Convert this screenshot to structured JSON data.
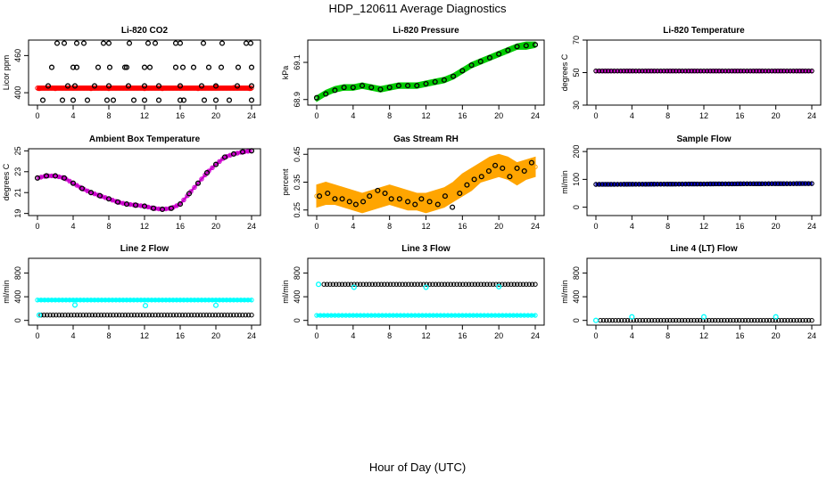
{
  "figure": {
    "title": "HDP_120611  Average Diagnostics",
    "xlabel": "Hour of Day (UTC)"
  },
  "chart_data": [
    {
      "type": "scatter",
      "title": "Li-820 CO2",
      "ylabel": "Licor ppm",
      "xlim": [
        0,
        24
      ],
      "xticks": [
        0,
        4,
        8,
        12,
        16,
        20,
        24
      ],
      "ylim": [
        380,
        485
      ],
      "yticks": [
        400,
        460
      ],
      "yticks_shown": [
        400,
        460
      ],
      "series": [
        {
          "name": "band",
          "color": "#ff0000",
          "kind": "band",
          "x": [
            0,
            24
          ],
          "low": [
            404,
            404
          ],
          "high": [
            411,
            411
          ]
        },
        {
          "name": "mean",
          "color": "#ff0000",
          "kind": "points",
          "x": [
            0.2,
            2,
            4,
            6,
            8,
            10,
            12,
            14,
            16,
            18,
            20,
            22,
            23.8
          ],
          "y": [
            407,
            407,
            408,
            407,
            407,
            408,
            407,
            407,
            408,
            407,
            409,
            408,
            407
          ]
        },
        {
          "name": "max",
          "color": "#000000",
          "kind": "points",
          "x": [
            2.2,
            3,
            4.4,
            5.2,
            7.4,
            8,
            10.3,
            12.4,
            13.2,
            15.5,
            16,
            18.6,
            20.7,
            23.4,
            23.9
          ],
          "y": [
            480,
            480,
            480,
            480,
            480,
            480,
            480,
            480,
            480,
            480,
            480,
            480,
            480,
            480,
            480
          ]
        },
        {
          "name": "upper",
          "color": "#000000",
          "kind": "points",
          "x": [
            1.6,
            4,
            4.4,
            6.8,
            8.1,
            9.8,
            10,
            12,
            12.6,
            15.5,
            16.3,
            17.5,
            19.2,
            20.6,
            22.5,
            24
          ],
          "y": [
            441,
            441,
            441,
            441,
            441,
            441,
            441,
            441,
            441,
            441,
            441,
            441,
            441,
            441,
            441,
            441
          ]
        },
        {
          "name": "lower",
          "color": "#000000",
          "kind": "points",
          "x": [
            0.6,
            2.8,
            4,
            5.6,
            7.8,
            8.5,
            10.8,
            12,
            13.6,
            16,
            16.4,
            18.7,
            20,
            21.5,
            24
          ],
          "y": [
            388,
            388,
            388,
            388,
            388,
            388,
            388,
            388,
            388,
            388,
            388,
            388,
            388,
            388,
            388
          ]
        },
        {
          "name": "mid",
          "color": "#000000",
          "kind": "points",
          "x": [
            1.2,
            3.4,
            4.2,
            6.4,
            8,
            10.2,
            12,
            13.6,
            16,
            18.4,
            20,
            22.4,
            24
          ],
          "y": [
            411,
            411,
            411,
            411,
            411,
            411,
            411,
            411,
            411,
            411,
            411,
            411,
            411
          ]
        }
      ]
    },
    {
      "type": "scatter",
      "title": "Li-820 Pressure",
      "ylabel": "kPa",
      "xlim": [
        0,
        24
      ],
      "xticks": [
        0,
        4,
        8,
        12,
        16,
        20,
        24
      ],
      "ylim": [
        68.87,
        69.22
      ],
      "yticks": [
        68.9,
        69.1
      ],
      "yticks_shown": [
        68.9,
        69.1
      ],
      "series": [
        {
          "name": "band",
          "color": "#00cc00",
          "kind": "band",
          "x": [
            0,
            1,
            2,
            3,
            4,
            5,
            6,
            7,
            8,
            9,
            10,
            11,
            12,
            13,
            14,
            15,
            16,
            17,
            18,
            19,
            20,
            21,
            22,
            23,
            24
          ],
          "low": [
            68.89,
            68.92,
            68.94,
            68.95,
            68.95,
            68.96,
            68.95,
            68.94,
            68.95,
            68.96,
            68.96,
            68.96,
            68.97,
            68.98,
            68.99,
            69.01,
            69.04,
            69.07,
            69.09,
            69.11,
            69.13,
            69.15,
            69.17,
            69.17,
            69.18
          ],
          "high": [
            68.92,
            68.95,
            68.97,
            68.98,
            68.98,
            68.99,
            68.98,
            68.97,
            68.98,
            68.99,
            68.99,
            68.99,
            69.0,
            69.01,
            69.02,
            69.04,
            69.07,
            69.1,
            69.12,
            69.14,
            69.16,
            69.18,
            69.2,
            69.21,
            69.21
          ]
        },
        {
          "name": "mean",
          "color": "#000000",
          "kind": "points",
          "x": [
            0,
            1,
            2,
            3,
            4,
            5,
            6,
            7,
            8,
            9,
            10,
            11,
            12,
            13,
            14,
            15,
            16,
            17,
            18,
            19,
            20,
            21,
            22,
            23,
            24
          ],
          "y": [
            68.91,
            68.93,
            68.95,
            68.965,
            68.965,
            68.975,
            68.965,
            68.955,
            68.965,
            68.975,
            68.975,
            68.975,
            68.985,
            68.995,
            69.005,
            69.025,
            69.055,
            69.085,
            69.105,
            69.125,
            69.145,
            69.165,
            69.185,
            69.19,
            69.195
          ]
        }
      ]
    },
    {
      "type": "scatter",
      "title": "Li-820 Temperature",
      "ylabel": "degrees C",
      "xlim": [
        0,
        24
      ],
      "xticks": [
        0,
        4,
        8,
        12,
        16,
        20,
        24
      ],
      "ylim": [
        30,
        70
      ],
      "yticks": [
        30,
        50,
        70
      ],
      "yticks_shown": [
        30,
        50,
        70
      ],
      "series": [
        {
          "name": "band",
          "color": "#cc00cc",
          "kind": "band",
          "x": [
            0,
            24
          ],
          "low": [
            50.3,
            50.3
          ],
          "high": [
            51.7,
            51.7
          ]
        },
        {
          "name": "mean",
          "color": "#000000",
          "kind": "line",
          "x": [
            0,
            24
          ],
          "y": [
            51,
            51
          ]
        }
      ]
    },
    {
      "type": "scatter",
      "title": "Ambient Box Temperature",
      "ylabel": "degrees C",
      "xlim": [
        0,
        24
      ],
      "xticks": [
        0,
        4,
        8,
        12,
        16,
        20,
        24
      ],
      "ylim": [
        18.8,
        25.2
      ],
      "yticks": [
        19,
        21,
        23,
        25
      ],
      "yticks_shown": [
        19,
        21,
        23,
        25
      ],
      "series": [
        {
          "name": "band",
          "color": "#cc00cc",
          "kind": "band",
          "x": [
            0,
            1,
            2,
            3,
            4,
            5,
            6,
            7,
            8,
            9,
            10,
            11,
            12,
            13,
            14,
            15,
            16,
            17,
            18,
            19,
            20,
            21,
            22,
            23,
            24
          ],
          "low": [
            22.3,
            22.5,
            22.5,
            22.3,
            21.8,
            21.3,
            20.9,
            20.6,
            20.3,
            20.0,
            19.8,
            19.7,
            19.6,
            19.4,
            19.3,
            19.4,
            19.8,
            20.8,
            21.8,
            22.8,
            23.6,
            24.3,
            24.6,
            24.8,
            24.9
          ],
          "high": [
            22.5,
            22.7,
            22.7,
            22.5,
            22.0,
            21.5,
            21.1,
            20.8,
            20.5,
            20.2,
            20.0,
            19.9,
            19.8,
            19.6,
            19.5,
            19.6,
            20.0,
            21.0,
            22.0,
            23.0,
            23.8,
            24.5,
            24.8,
            25.0,
            25.1
          ]
        },
        {
          "name": "mean",
          "color": "#000000",
          "kind": "points",
          "x": [
            0,
            1,
            2,
            3,
            4,
            5,
            6,
            7,
            8,
            9,
            10,
            11,
            12,
            13,
            14,
            15,
            16,
            17,
            18,
            19,
            20,
            21,
            22,
            23,
            24
          ],
          "y": [
            22.4,
            22.6,
            22.6,
            22.4,
            21.9,
            21.4,
            21.0,
            20.7,
            20.4,
            20.1,
            19.9,
            19.8,
            19.7,
            19.5,
            19.4,
            19.5,
            19.9,
            20.9,
            21.9,
            22.9,
            23.7,
            24.4,
            24.7,
            24.9,
            25.0
          ]
        }
      ]
    },
    {
      "type": "scatter",
      "title": "Gas Stream RH",
      "ylabel": "percent",
      "xlim": [
        0,
        24
      ],
      "xticks": [
        0,
        4,
        8,
        12,
        16,
        20,
        24
      ],
      "ylim": [
        0.23,
        0.47
      ],
      "yticks": [
        0.25,
        0.35,
        0.45
      ],
      "yticks_shown": [
        0.25,
        0.35,
        0.45
      ],
      "series": [
        {
          "name": "band",
          "color": "#ffa500",
          "kind": "band",
          "x": [
            0,
            1,
            2,
            3,
            4,
            5,
            6,
            7,
            8,
            9,
            10,
            11,
            12,
            13,
            14,
            15,
            16,
            17,
            18,
            19,
            20,
            21,
            22,
            23,
            24
          ],
          "low": [
            0.26,
            0.27,
            0.27,
            0.26,
            0.25,
            0.24,
            0.25,
            0.26,
            0.27,
            0.26,
            0.25,
            0.25,
            0.24,
            0.25,
            0.26,
            0.28,
            0.3,
            0.32,
            0.35,
            0.36,
            0.37,
            0.36,
            0.34,
            0.36,
            0.37
          ],
          "high": [
            0.34,
            0.35,
            0.34,
            0.33,
            0.32,
            0.31,
            0.32,
            0.33,
            0.34,
            0.33,
            0.32,
            0.31,
            0.31,
            0.32,
            0.33,
            0.35,
            0.38,
            0.4,
            0.42,
            0.44,
            0.45,
            0.44,
            0.42,
            0.43,
            0.44
          ]
        },
        {
          "name": "mean",
          "color": "#000000",
          "kind": "points",
          "x": [
            0.3,
            1.2,
            2,
            2.8,
            3.6,
            4.3,
            5.1,
            5.8,
            6.7,
            7.5,
            8.2,
            9.1,
            10,
            10.8,
            11.5,
            12.4,
            13.3,
            14.1,
            14.9,
            15.7,
            16.5,
            17.3,
            18.1,
            18.9,
            19.6,
            20.4,
            21.2,
            22,
            22.8,
            23.6
          ],
          "y": [
            0.3,
            0.31,
            0.29,
            0.29,
            0.28,
            0.27,
            0.28,
            0.3,
            0.32,
            0.31,
            0.29,
            0.29,
            0.28,
            0.27,
            0.29,
            0.28,
            0.27,
            0.3,
            0.26,
            0.31,
            0.34,
            0.36,
            0.37,
            0.39,
            0.41,
            0.4,
            0.37,
            0.4,
            0.39,
            0.42
          ]
        }
      ]
    },
    {
      "type": "scatter",
      "title": "Sample Flow",
      "ylabel": "ml/min",
      "xlim": [
        0,
        24
      ],
      "xticks": [
        0,
        4,
        8,
        12,
        16,
        20,
        24
      ],
      "ylim": [
        -30,
        210
      ],
      "yticks": [
        0,
        100,
        200
      ],
      "yticks_shown": [
        0,
        100,
        200
      ],
      "series": [
        {
          "name": "band",
          "color": "#0000cc",
          "kind": "band",
          "x": [
            0,
            24
          ],
          "low": [
            77,
            80
          ],
          "high": [
            87,
            90
          ]
        },
        {
          "name": "mean",
          "color": "#000000",
          "kind": "line",
          "x": [
            0,
            24
          ],
          "y": [
            82,
            85
          ]
        }
      ]
    },
    {
      "type": "scatter",
      "title": "Line 2 Flow",
      "ylabel": "ml/min",
      "xlim": [
        0,
        24
      ],
      "xticks": [
        0,
        4,
        8,
        12,
        16,
        20,
        24
      ],
      "ylim": [
        -80,
        1050
      ],
      "yticks": [
        0,
        400,
        800
      ],
      "yticks_shown": [
        0,
        400,
        800
      ],
      "series": [
        {
          "name": "line-a-band",
          "color": "#00ffff",
          "kind": "band",
          "x": [
            0,
            24
          ],
          "low": [
            320,
            320
          ],
          "high": [
            370,
            370
          ]
        },
        {
          "name": "line-a-dips",
          "color": "#00ffff",
          "kind": "points",
          "x": [
            4.2,
            12.1,
            20
          ],
          "y": [
            260,
            250,
            255
          ]
        },
        {
          "name": "line-b-mean",
          "color": "#000000",
          "kind": "points",
          "x": [
            0.4,
            24
          ],
          "y": [
            90,
            90
          ],
          "dense": true
        },
        {
          "name": "line-b-cyan",
          "color": "#00ffff",
          "kind": "points",
          "x": [
            0.2
          ],
          "y": [
            90
          ]
        }
      ]
    },
    {
      "type": "scatter",
      "title": "Line 3 Flow",
      "ylabel": "ml/min",
      "xlim": [
        0,
        24
      ],
      "xticks": [
        0,
        4,
        8,
        12,
        16,
        20,
        24
      ],
      "ylim": [
        -80,
        1050
      ],
      "yticks": [
        0,
        400,
        800
      ],
      "yticks_shown": [
        0,
        400,
        800
      ],
      "series": [
        {
          "name": "upper-mean",
          "color": "#000000",
          "kind": "points",
          "x": [
            0.8,
            24
          ],
          "y": [
            610,
            610
          ],
          "dense": true
        },
        {
          "name": "upper-cyan",
          "color": "#00ffff",
          "kind": "points",
          "x": [
            0.2,
            4.1,
            12,
            20
          ],
          "y": [
            610,
            560,
            560,
            570
          ]
        },
        {
          "name": "lower-band",
          "color": "#00ffff",
          "kind": "band",
          "x": [
            0,
            24
          ],
          "low": [
            70,
            70
          ],
          "high": [
            100,
            100
          ]
        }
      ]
    },
    {
      "type": "scatter",
      "title": "Line 4 (LT) Flow",
      "ylabel": "ml/min",
      "xlim": [
        0,
        24
      ],
      "xticks": [
        0,
        4,
        8,
        12,
        16,
        20,
        24
      ],
      "ylim": [
        -80,
        1050
      ],
      "yticks": [
        0,
        400,
        800
      ],
      "yticks_shown": [
        0,
        400,
        800
      ],
      "series": [
        {
          "name": "mean",
          "color": "#000000",
          "kind": "points",
          "x": [
            0.5,
            24
          ],
          "y": [
            0,
            0
          ],
          "dense": true
        },
        {
          "name": "cyan",
          "color": "#00ffff",
          "kind": "points",
          "x": [
            0,
            4,
            12,
            20
          ],
          "y": [
            0,
            60,
            60,
            60
          ]
        }
      ]
    }
  ]
}
